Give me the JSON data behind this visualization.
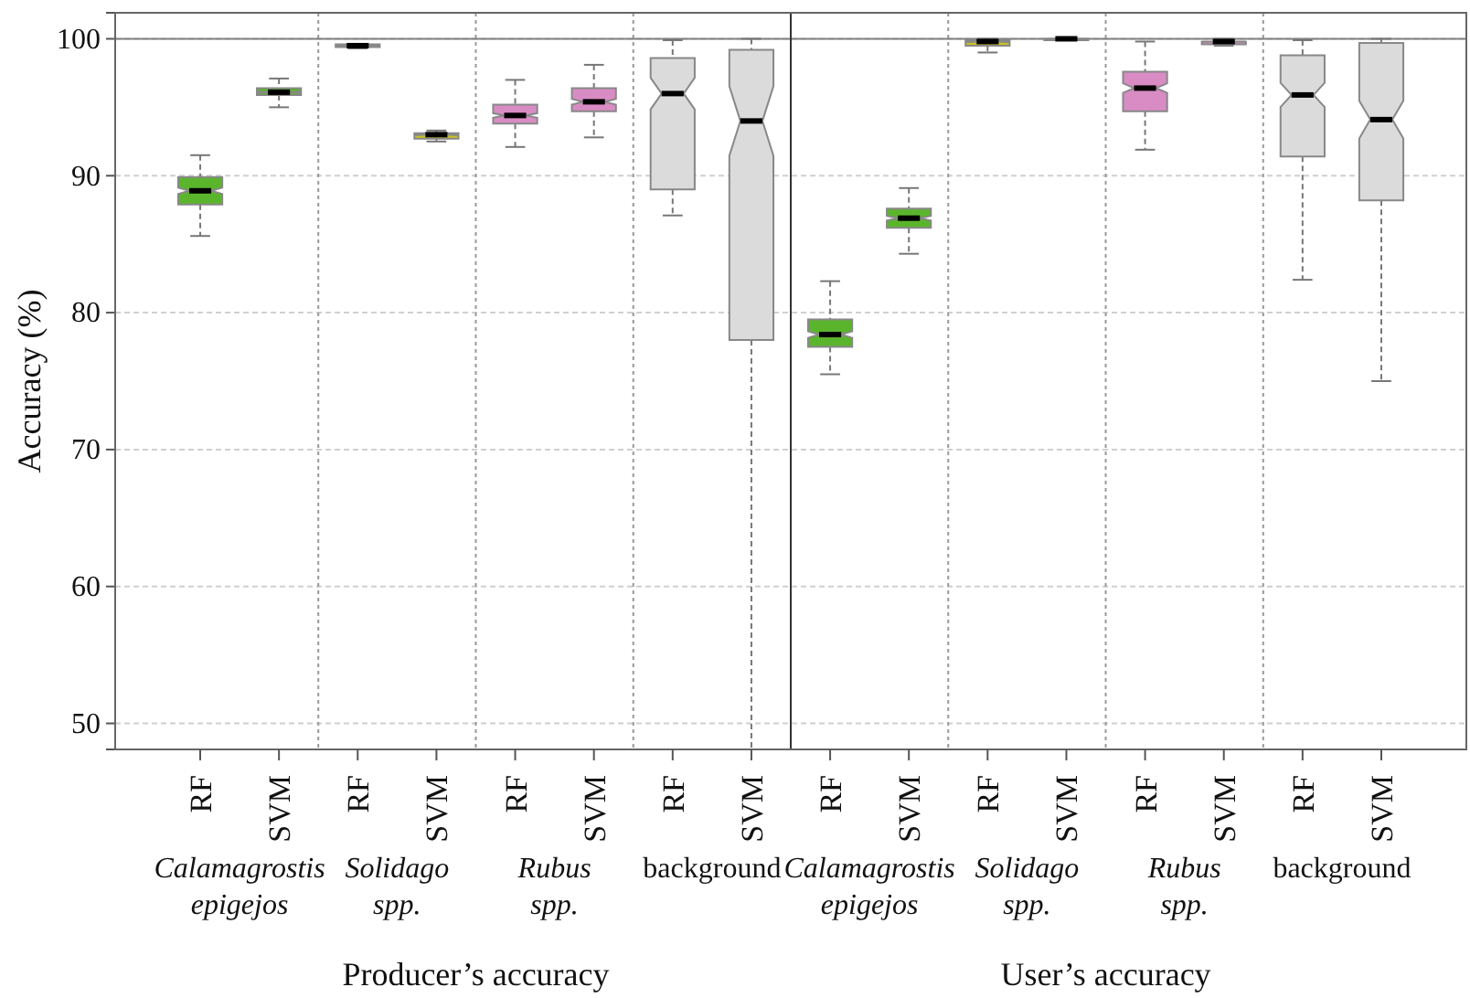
{
  "chart_data": {
    "type": "box",
    "ylabel": "Accuracy (%)",
    "categories": [
      "RF",
      "SVM",
      "RF",
      "SVM",
      "RF",
      "SVM",
      "RF",
      "SVM",
      "RF",
      "SVM",
      "RF",
      "SVM",
      "RF",
      "SVM",
      "RF",
      "SVM"
    ],
    "colors": [
      "#5bb52c",
      "#5bb52c",
      "#c9c126",
      "#c9c126",
      "#d98cc4",
      "#d98cc4",
      "#dcdbdc",
      "#dcdbdc",
      "#5bb52c",
      "#5bb52c",
      "#c9c126",
      "#c9c126",
      "#d98cc4",
      "#d98cc4",
      "#dcdbdc",
      "#dcdbdc"
    ],
    "boxes": [
      {
        "low": 85.6,
        "q1": 87.9,
        "median": 88.9,
        "q3": 89.9,
        "high": 91.5
      },
      {
        "low": 95.0,
        "q1": 95.9,
        "median": 96.1,
        "q3": 96.4,
        "high": 97.1
      },
      {
        "low": 99.3,
        "q1": 99.4,
        "median": 99.5,
        "q3": 99.6,
        "high": 99.6
      },
      {
        "low": 92.5,
        "q1": 92.7,
        "median": 93.0,
        "q3": 93.1,
        "high": 93.3
      },
      {
        "low": 92.1,
        "q1": 93.8,
        "median": 94.4,
        "q3": 95.2,
        "high": 97.0
      },
      {
        "low": 92.8,
        "q1": 94.7,
        "median": 95.4,
        "q3": 96.4,
        "high": 98.1
      },
      {
        "low": 87.1,
        "q1": 89.0,
        "median": 96.0,
        "q3": 98.6,
        "high": 99.9
      },
      {
        "low": 48.1,
        "q1": 78.0,
        "median": 94.0,
        "q3": 99.2,
        "high": 100
      },
      {
        "low": 75.5,
        "q1": 77.5,
        "median": 78.4,
        "q3": 79.5,
        "high": 82.3
      },
      {
        "low": 84.3,
        "q1": 86.2,
        "median": 86.9,
        "q3": 87.6,
        "high": 89.1
      },
      {
        "low": 99.0,
        "q1": 99.5,
        "median": 99.8,
        "q3": 99.9,
        "high": 100
      },
      {
        "low": 99.9,
        "q1": 99.9,
        "median": 100,
        "q3": 100,
        "high": 100
      },
      {
        "low": 91.9,
        "q1": 94.7,
        "median": 96.4,
        "q3": 97.6,
        "high": 99.8
      },
      {
        "low": 99.5,
        "q1": 99.6,
        "median": 99.8,
        "q3": 99.8,
        "high": 100
      },
      {
        "low": 82.4,
        "q1": 91.4,
        "median": 95.9,
        "q3": 98.8,
        "high": 99.9
      },
      {
        "low": 75.0,
        "q1": 88.2,
        "median": 94.1,
        "q3": 99.7,
        "high": 100
      }
    ],
    "ylim": [
      48.1,
      101.9
    ],
    "yticks": [
      50,
      60,
      70,
      80,
      90,
      100
    ],
    "grid": "y",
    "ref_lines": [
      {
        "axis": "y",
        "value": 100,
        "color": "#808080",
        "line_style": "solid"
      }
    ],
    "annotations": [
      "Calamagrostis epigejos",
      "Solidago spp.",
      "Rubus spp.",
      "background",
      "Calamagrostis epigejos",
      "Solidago spp.",
      "Rubus spp.",
      "background",
      "Producer’s accuracy",
      "User’s accuracy"
    ]
  }
}
